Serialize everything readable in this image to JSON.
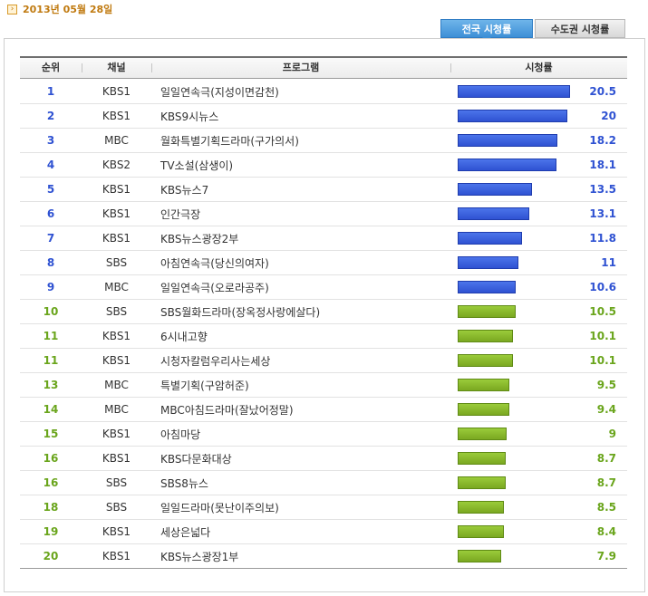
{
  "date": "2013년 05월 28일",
  "tabs": {
    "national": "전국 시청률",
    "capital": "수도권 시청률"
  },
  "colors": {
    "top_series": "#2f52d2",
    "rest_series": "#7aa821",
    "top_text": "#2f52d2",
    "rest_text": "#6aa51c"
  },
  "header": {
    "rank": "순위",
    "channel": "채널",
    "program": "프로그램",
    "rating": "시청률"
  },
  "chart_data": {
    "type": "bar",
    "title": "",
    "xlabel": "",
    "ylabel": "시청률",
    "xlim": [
      0,
      20.5
    ],
    "rows": [
      {
        "rank": "1",
        "channel": "KBS1",
        "program": "일일연속극(지성이면감천)",
        "rating": 20.5
      },
      {
        "rank": "2",
        "channel": "KBS1",
        "program": "KBS9시뉴스",
        "rating": 20
      },
      {
        "rank": "3",
        "channel": "MBC",
        "program": "월화특별기획드라마(구가의서)",
        "rating": 18.2
      },
      {
        "rank": "4",
        "channel": "KBS2",
        "program": "TV소설(삼생이)",
        "rating": 18.1
      },
      {
        "rank": "5",
        "channel": "KBS1",
        "program": "KBS뉴스7",
        "rating": 13.5
      },
      {
        "rank": "6",
        "channel": "KBS1",
        "program": "인간극장",
        "rating": 13.1
      },
      {
        "rank": "7",
        "channel": "KBS1",
        "program": "KBS뉴스광장2부",
        "rating": 11.8
      },
      {
        "rank": "8",
        "channel": "SBS",
        "program": "아침연속극(당신의여자)",
        "rating": 11
      },
      {
        "rank": "9",
        "channel": "MBC",
        "program": "일일연속극(오로라공주)",
        "rating": 10.6
      },
      {
        "rank": "10",
        "channel": "SBS",
        "program": "SBS월화드라마(장옥정사랑에살다)",
        "rating": 10.5
      },
      {
        "rank": "11",
        "channel": "KBS1",
        "program": "6시내고향",
        "rating": 10.1
      },
      {
        "rank": "11",
        "channel": "KBS1",
        "program": "시청자칼럼우리사는세상",
        "rating": 10.1
      },
      {
        "rank": "13",
        "channel": "MBC",
        "program": "특별기획(구암허준)",
        "rating": 9.5
      },
      {
        "rank": "14",
        "channel": "MBC",
        "program": "MBC아침드라마(잘났어정말)",
        "rating": 9.4
      },
      {
        "rank": "15",
        "channel": "KBS1",
        "program": "아침마당",
        "rating": 9
      },
      {
        "rank": "16",
        "channel": "KBS1",
        "program": "KBS다문화대상",
        "rating": 8.7
      },
      {
        "rank": "16",
        "channel": "SBS",
        "program": "SBS8뉴스",
        "rating": 8.7
      },
      {
        "rank": "18",
        "channel": "SBS",
        "program": "일일드라마(못난이주의보)",
        "rating": 8.5
      },
      {
        "rank": "19",
        "channel": "KBS1",
        "program": "세상은넓다",
        "rating": 8.4
      },
      {
        "rank": "20",
        "channel": "KBS1",
        "program": "KBS뉴스광장1부",
        "rating": 7.9
      }
    ]
  }
}
